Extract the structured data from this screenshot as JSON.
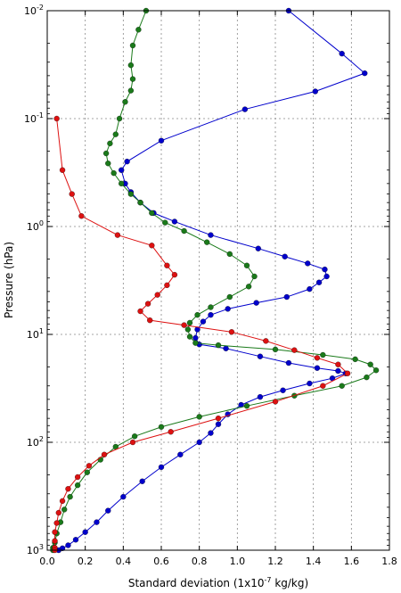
{
  "chart_data": {
    "type": "line",
    "xlabel": "Standard deviation (1x10",
    "xlabel_exp": "-7",
    "xlabel_suffix": " kg/kg)",
    "ylabel": "Pressure (hPa)",
    "xlim": [
      0,
      1.8
    ],
    "ylim": [
      0.01,
      1000
    ],
    "y_scale": "log",
    "y_inverted": true,
    "grid": true,
    "x_ticks": [
      "0.0",
      "0.2",
      "0.4",
      "0.6",
      "0.8",
      "1.0",
      "1.2",
      "1.4",
      "1.6",
      "1.8"
    ],
    "y_ticks": [
      {
        "base": "10",
        "exp": "-2",
        "value": 0.01
      },
      {
        "base": "10",
        "exp": "-1",
        "value": 0.1
      },
      {
        "base": "10",
        "exp": "0",
        "value": 1
      },
      {
        "base": "10",
        "exp": "1",
        "value": 10
      },
      {
        "base": "10",
        "exp": "2",
        "value": 100
      },
      {
        "base": "10",
        "exp": "3",
        "value": 1000
      }
    ],
    "series": [
      {
        "color": "#0000cc",
        "values": [
          [
            1.27,
            0.01
          ],
          [
            1.55,
            0.025
          ],
          [
            1.67,
            0.038
          ],
          [
            1.41,
            0.056
          ],
          [
            1.04,
            0.082
          ],
          [
            0.6,
            0.16
          ],
          [
            0.42,
            0.25
          ],
          [
            0.39,
            0.3
          ],
          [
            0.41,
            0.4
          ],
          [
            0.44,
            0.48
          ],
          [
            0.49,
            0.6
          ],
          [
            0.56,
            0.75
          ],
          [
            0.67,
            0.9
          ],
          [
            0.86,
            1.2
          ],
          [
            1.11,
            1.6
          ],
          [
            1.25,
            1.9
          ],
          [
            1.37,
            2.2
          ],
          [
            1.46,
            2.5
          ],
          [
            1.47,
            2.9
          ],
          [
            1.43,
            3.3
          ],
          [
            1.38,
            3.8
          ],
          [
            1.26,
            4.5
          ],
          [
            1.1,
            5.1
          ],
          [
            0.95,
            5.8
          ],
          [
            0.86,
            6.6
          ],
          [
            0.82,
            7.6
          ],
          [
            0.79,
            9.0
          ],
          [
            0.78,
            10.8
          ],
          [
            0.8,
            12.4
          ],
          [
            0.94,
            13.5
          ],
          [
            1.12,
            16.0
          ],
          [
            1.27,
            18.4
          ],
          [
            1.42,
            20.5
          ],
          [
            1.53,
            21.8
          ],
          [
            1.57,
            23.0
          ],
          [
            1.5,
            25.5
          ],
          [
            1.38,
            28.5
          ],
          [
            1.24,
            33.0
          ],
          [
            1.12,
            38.0
          ],
          [
            1.02,
            45.0
          ],
          [
            0.95,
            55.0
          ],
          [
            0.9,
            68.0
          ],
          [
            0.86,
            82.0
          ],
          [
            0.8,
            100.0
          ],
          [
            0.7,
            130.0
          ],
          [
            0.6,
            170.0
          ],
          [
            0.5,
            230.0
          ],
          [
            0.4,
            320.0
          ],
          [
            0.32,
            430.0
          ],
          [
            0.26,
            550.0
          ],
          [
            0.2,
            680.0
          ],
          [
            0.15,
            800.0
          ],
          [
            0.11,
            900.0
          ],
          [
            0.08,
            960.0
          ],
          [
            0.06,
            1000.0
          ]
        ]
      },
      {
        "color": "#1a7a1a",
        "values": [
          [
            0.52,
            0.01
          ],
          [
            0.48,
            0.015
          ],
          [
            0.45,
            0.021
          ],
          [
            0.44,
            0.032
          ],
          [
            0.45,
            0.043
          ],
          [
            0.44,
            0.055
          ],
          [
            0.41,
            0.07
          ],
          [
            0.38,
            0.1
          ],
          [
            0.36,
            0.14
          ],
          [
            0.33,
            0.17
          ],
          [
            0.31,
            0.21
          ],
          [
            0.32,
            0.26
          ],
          [
            0.35,
            0.32
          ],
          [
            0.39,
            0.4
          ],
          [
            0.44,
            0.5
          ],
          [
            0.49,
            0.6
          ],
          [
            0.55,
            0.75
          ],
          [
            0.62,
            0.92
          ],
          [
            0.72,
            1.1
          ],
          [
            0.84,
            1.4
          ],
          [
            0.96,
            1.8
          ],
          [
            1.05,
            2.3
          ],
          [
            1.09,
            2.9
          ],
          [
            1.06,
            3.6
          ],
          [
            0.96,
            4.5
          ],
          [
            0.86,
            5.6
          ],
          [
            0.79,
            6.6
          ],
          [
            0.75,
            7.8
          ],
          [
            0.74,
            9.0
          ],
          [
            0.75,
            10.5
          ],
          [
            0.78,
            12.0
          ],
          [
            0.9,
            12.6
          ],
          [
            1.2,
            13.8
          ],
          [
            1.45,
            15.5
          ],
          [
            1.62,
            17.0
          ],
          [
            1.7,
            19.0
          ],
          [
            1.73,
            21.5
          ],
          [
            1.68,
            25.0
          ],
          [
            1.55,
            30.0
          ],
          [
            1.3,
            37.0
          ],
          [
            1.05,
            46.0
          ],
          [
            0.8,
            58.0
          ],
          [
            0.6,
            72.0
          ],
          [
            0.46,
            88.0
          ],
          [
            0.36,
            110.0
          ],
          [
            0.28,
            145.0
          ],
          [
            0.21,
            190.0
          ],
          [
            0.16,
            250.0
          ],
          [
            0.12,
            320.0
          ],
          [
            0.09,
            420.0
          ],
          [
            0.07,
            550.0
          ],
          [
            0.05,
            700.0
          ],
          [
            0.04,
            850.0
          ],
          [
            0.03,
            950.0
          ],
          [
            0.03,
            1000.0
          ]
        ]
      },
      {
        "color": "#dd1111",
        "values": [
          [
            0.05,
            0.1
          ],
          [
            0.08,
            0.3
          ],
          [
            0.13,
            0.5
          ],
          [
            0.18,
            0.8
          ],
          [
            0.37,
            1.2
          ],
          [
            0.55,
            1.5
          ],
          [
            0.63,
            2.3
          ],
          [
            0.67,
            2.8
          ],
          [
            0.63,
            3.5
          ],
          [
            0.58,
            4.3
          ],
          [
            0.53,
            5.2
          ],
          [
            0.49,
            6.1
          ],
          [
            0.54,
            7.4
          ],
          [
            0.72,
            8.2
          ],
          [
            0.97,
            9.5
          ],
          [
            1.15,
            11.5
          ],
          [
            1.3,
            14.0
          ],
          [
            1.42,
            16.5
          ],
          [
            1.53,
            19.0
          ],
          [
            1.58,
            23.0
          ],
          [
            1.45,
            30.0
          ],
          [
            1.2,
            42.0
          ],
          [
            0.9,
            60.0
          ],
          [
            0.65,
            80.0
          ],
          [
            0.45,
            100.0
          ],
          [
            0.3,
            130.0
          ],
          [
            0.22,
            165.0
          ],
          [
            0.16,
            210.0
          ],
          [
            0.11,
            270.0
          ],
          [
            0.08,
            350.0
          ],
          [
            0.06,
            450.0
          ],
          [
            0.05,
            560.0
          ],
          [
            0.04,
            680.0
          ],
          [
            0.04,
            820.0
          ],
          [
            0.04,
            950.0
          ],
          [
            0.04,
            1000.0
          ]
        ]
      }
    ]
  }
}
